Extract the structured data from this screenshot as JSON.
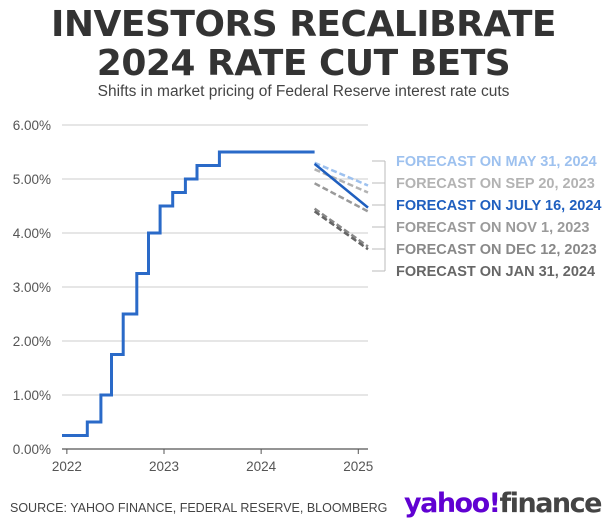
{
  "title_line1": "INVESTORS RECALIBRATE",
  "title_line2": "2024 RATE CUT BETS",
  "subtitle": "Shifts in market pricing of Federal Reserve interest rate cuts",
  "source": "SOURCE: YAHOO FINANCE, FEDERAL RESERVE, BLOOMBERG",
  "logo": {
    "brand": "yahoo!",
    "product": "finance"
  },
  "colors": {
    "fed_funds": "#2a6ac8",
    "may": "#9dc1ef",
    "sep": "#b3b3b3",
    "jul": "#1f5fbf",
    "nov": "#9a9a9a",
    "dec": "#888888",
    "jan": "#666666",
    "grid": "#cccccc",
    "axis": "#555555",
    "brand": "#6001d2"
  },
  "chart_data": {
    "type": "line",
    "title": "INVESTORS RECALIBRATE 2024 RATE CUT BETS",
    "subtitle": "Shifts in market pricing of Federal Reserve interest rate cuts",
    "xlabel": "",
    "ylabel": "",
    "xlim": [
      2021.95,
      2025.1
    ],
    "ylim": [
      0,
      6
    ],
    "x_ticks": [
      "2022",
      "2023",
      "2024",
      "2025"
    ],
    "y_ticks": [
      "0.00%",
      "1.00%",
      "2.00%",
      "3.00%",
      "4.00%",
      "5.00%",
      "6.00%"
    ],
    "grid": "horizontal",
    "series": [
      {
        "name": "Federal funds rate",
        "style": "step",
        "x": [
          2021.95,
          2022.21,
          2022.21,
          2022.35,
          2022.35,
          2022.46,
          2022.46,
          2022.58,
          2022.58,
          2022.72,
          2022.72,
          2022.84,
          2022.84,
          2022.96,
          2022.96,
          2023.09,
          2023.09,
          2023.22,
          2023.22,
          2023.34,
          2023.34,
          2023.57,
          2023.57,
          2024.55
        ],
        "y": [
          0.25,
          0.25,
          0.5,
          0.5,
          1.0,
          1.0,
          1.75,
          1.75,
          2.5,
          2.5,
          3.25,
          3.25,
          4.0,
          4.0,
          4.5,
          4.5,
          4.75,
          4.75,
          5.0,
          5.0,
          5.25,
          5.25,
          5.5,
          5.5
        ]
      },
      {
        "name": "FORECAST ON MAY 31, 2024",
        "style": "dashed",
        "x": [
          2024.55,
          2025.1
        ],
        "y": [
          5.3,
          4.88
        ]
      },
      {
        "name": "FORECAST ON SEP 20, 2023",
        "style": "dashed",
        "x": [
          2024.55,
          2025.1
        ],
        "y": [
          5.18,
          4.75
        ]
      },
      {
        "name": "FORECAST ON JULY 16, 2024",
        "style": "solid",
        "x": [
          2024.55,
          2025.1
        ],
        "y": [
          5.28,
          4.47
        ]
      },
      {
        "name": "FORECAST ON NOV 1, 2023",
        "style": "dashed",
        "x": [
          2024.55,
          2025.1
        ],
        "y": [
          4.92,
          4.4
        ]
      },
      {
        "name": "FORECAST ON DEC 12, 2023",
        "style": "dashed",
        "x": [
          2024.55,
          2025.1
        ],
        "y": [
          4.45,
          3.75
        ]
      },
      {
        "name": "FORECAST ON JAN 31, 2024",
        "style": "dashed",
        "x": [
          2024.55,
          2025.1
        ],
        "y": [
          4.4,
          3.7
        ]
      }
    ]
  }
}
